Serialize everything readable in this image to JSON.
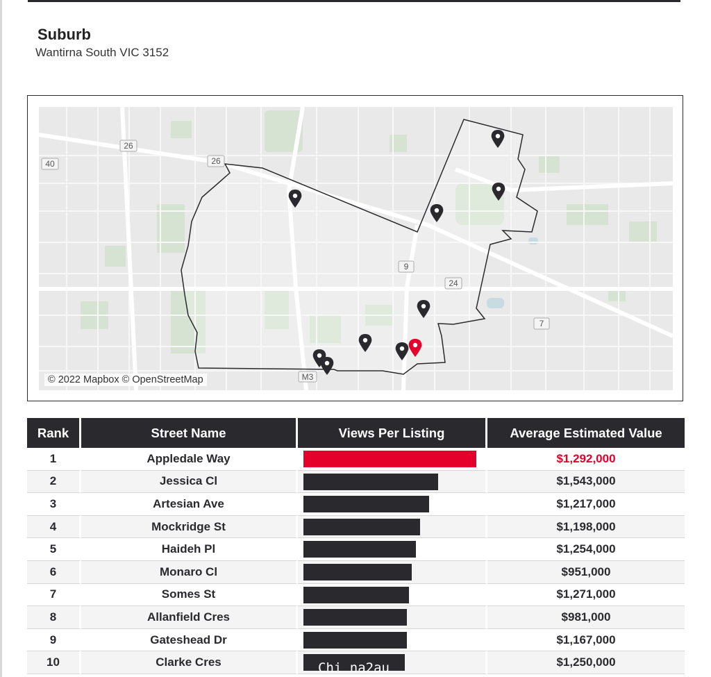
{
  "header": {
    "title": "Suburb",
    "subtitle": "Wantirna South VIC 3152"
  },
  "map": {
    "attribution": "© 2022 Mapbox © OpenStreetMap",
    "road_labels": [
      "26",
      "26",
      "40",
      "9",
      "24",
      "7",
      "M3"
    ],
    "pin_count": 11,
    "selected_pin_color": "#e4002b",
    "pin_color": "#2a2a2e"
  },
  "table": {
    "headers": {
      "rank": "Rank",
      "street": "Street Name",
      "views": "Views Per Listing",
      "value": "Average Estimated Value"
    },
    "rows": [
      {
        "rank": "1",
        "street": "Appledale Way",
        "views_fraction": 1.0,
        "value": "$1,292,000"
      },
      {
        "rank": "2",
        "street": "Jessica Cl",
        "views_fraction": 0.78,
        "value": "$1,543,000"
      },
      {
        "rank": "3",
        "street": "Artesian Ave",
        "views_fraction": 0.725,
        "value": "$1,217,000"
      },
      {
        "rank": "4",
        "street": "Mockridge St",
        "views_fraction": 0.675,
        "value": "$1,198,000"
      },
      {
        "rank": "5",
        "street": "Haideh Pl",
        "views_fraction": 0.65,
        "value": "$1,254,000"
      },
      {
        "rank": "6",
        "street": "Monaro Cl",
        "views_fraction": 0.625,
        "value": "$951,000"
      },
      {
        "rank": "7",
        "street": "Somes St",
        "views_fraction": 0.612,
        "value": "$1,271,000"
      },
      {
        "rank": "8",
        "street": "Allanfield Cres",
        "views_fraction": 0.6,
        "value": "$981,000"
      },
      {
        "rank": "9",
        "street": "Gateshead Dr",
        "views_fraction": 0.6,
        "value": "$1,167,000"
      },
      {
        "rank": "10",
        "street": "Clarke Cres",
        "views_fraction": 0.585,
        "value": "$1,250,000"
      }
    ]
  },
  "watermark": "Chi na2au",
  "colors": {
    "header_bg": "#2a2a2e",
    "accent": "#e4002b"
  }
}
